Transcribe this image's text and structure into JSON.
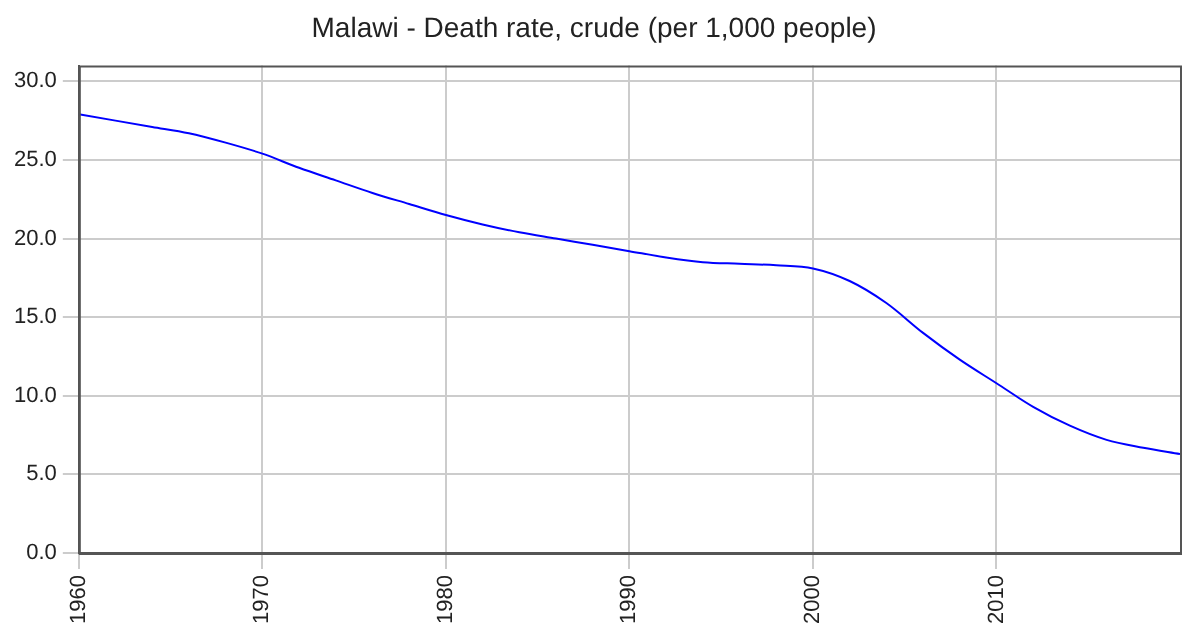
{
  "chart_data": {
    "type": "line",
    "title": "Malawi - Death rate, crude (per 1,000 people)",
    "x": [
      1960,
      1962,
      1964,
      1966,
      1968,
      1970,
      1972,
      1974,
      1976,
      1978,
      1980,
      1982,
      1984,
      1986,
      1988,
      1990,
      1992,
      1994,
      1996,
      1998,
      2000,
      2002,
      2004,
      2006,
      2008,
      2010,
      2012,
      2014,
      2016,
      2018,
      2020
    ],
    "series": [
      {
        "color": "#0000ff",
        "values": [
          27.9,
          27.5,
          27.1,
          26.7,
          26.1,
          25.4,
          24.5,
          23.7,
          22.9,
          22.2,
          21.5,
          20.9,
          20.4,
          20.0,
          19.6,
          19.2,
          18.8,
          18.5,
          18.4,
          18.3,
          18.1,
          17.3,
          15.9,
          14.0,
          12.3,
          10.8,
          9.3,
          8.1,
          7.2,
          6.7,
          6.3
        ]
      }
    ],
    "xlim": [
      1960,
      2020
    ],
    "xticks": [
      1960,
      1970,
      1980,
      1990,
      2000,
      2010
    ],
    "ylim": [
      0,
      31
    ],
    "yticks": [
      {
        "value": 0,
        "label": "0.0"
      },
      {
        "value": 5,
        "label": "5.0"
      },
      {
        "value": 10,
        "label": "10.0"
      },
      {
        "value": 15,
        "label": "15.0"
      },
      {
        "value": 20,
        "label": "20.0"
      },
      {
        "value": 25,
        "label": "25.0"
      },
      {
        "value": 30,
        "label": "30.0"
      }
    ],
    "grid": true,
    "marker": "none",
    "line_style": "solid",
    "legend": false
  }
}
